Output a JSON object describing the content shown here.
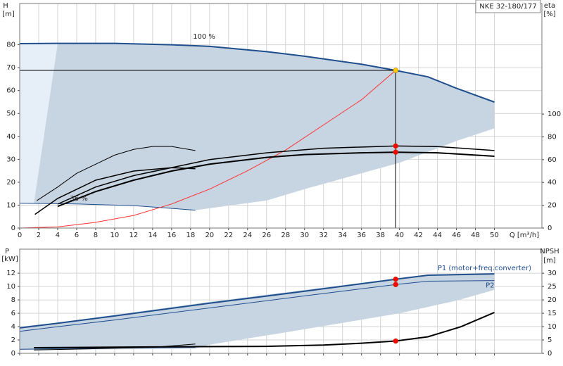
{
  "header": {
    "model": "NKE 32-180/177"
  },
  "chart_data": [
    {
      "type": "line",
      "y_label": "H",
      "y_unit": "[m]",
      "y2_label": "eta",
      "y2_unit": "[%]",
      "x_label": "Q [m³/h]",
      "xlim": [
        0,
        55
      ],
      "xticks": [
        0,
        2,
        4,
        6,
        8,
        10,
        12,
        14,
        16,
        18,
        20,
        22,
        24,
        26,
        28,
        30,
        32,
        34,
        36,
        38,
        40,
        42,
        44,
        46,
        48,
        50
      ],
      "ylim": [
        0,
        98
      ],
      "yticks": [
        0,
        10,
        20,
        30,
        40,
        50,
        60,
        70,
        80
      ],
      "y2lim": [
        0,
        197
      ],
      "y2ticks": [
        0,
        20,
        40,
        60,
        80,
        100
      ],
      "grid": true,
      "series": [
        {
          "color": "#e6eef7",
          "fill": true,
          "x": [
            0,
            4,
            1.5,
            0
          ],
          "values": [
            80.5,
            80.6,
            10.8,
            10.8
          ]
        },
        {
          "color": "#c7d5e3",
          "fill": true,
          "x": [
            4,
            10,
            16,
            20,
            26,
            30,
            36,
            39.6,
            43,
            46,
            50,
            50,
            46,
            40,
            30,
            26,
            18.5,
            12,
            6,
            1.5
          ],
          "values": [
            80.6,
            80.6,
            80,
            79.3,
            77,
            75,
            71.5,
            68.8,
            66,
            61,
            55,
            43.5,
            38,
            28.5,
            17,
            12,
            7.8,
            9.8,
            10.5,
            10.8
          ]
        },
        {
          "color": "#1f4e8c",
          "line_width": 2,
          "x": [
            0,
            4,
            10,
            16,
            20,
            26,
            30,
            36,
            39.6,
            43,
            46,
            50
          ],
          "values": [
            80.5,
            80.6,
            80.6,
            80,
            79.3,
            77,
            75,
            71.5,
            68.8,
            66,
            61,
            55
          ]
        },
        {
          "color": "#1f4e8c",
          "line_width": 1,
          "x": [
            0,
            6,
            12,
            18.5
          ],
          "values": [
            10.8,
            10.5,
            9.8,
            7.8
          ]
        },
        {
          "color": "#ff3030",
          "line_width": 1,
          "x": [
            0,
            4,
            8,
            12,
            16,
            20,
            24,
            28,
            32,
            36,
            39.6
          ],
          "values": [
            0,
            0.5,
            2.5,
            5.5,
            10.5,
            17,
            25,
            34,
            45,
            56,
            68.8
          ]
        },
        {
          "color": "#000000",
          "line_width": 1,
          "x": [
            0,
            39.6
          ],
          "values": [
            68.8,
            68.8
          ]
        },
        {
          "color": "#000000",
          "line_width": 1,
          "x": [
            39.6,
            39.6
          ],
          "values": [
            0,
            68.8
          ]
        },
        {
          "color": "#000000",
          "line_width": 2,
          "axis": "y2",
          "x": [
            4,
            8,
            12,
            16,
            20,
            26,
            30,
            36,
            39.6,
            44,
            50
          ],
          "values": [
            19,
            32,
            42,
            50,
            56,
            62,
            64.5,
            66,
            66.6,
            66,
            63
          ]
        },
        {
          "color": "#000000",
          "line_width": 1.5,
          "axis": "y2",
          "x": [
            4,
            8,
            12,
            20,
            26,
            32,
            39.6,
            44,
            50
          ],
          "values": [
            21,
            36,
            46,
            60,
            66,
            70,
            72,
            71.5,
            68
          ]
        },
        {
          "color": "#000000",
          "line_width": 1,
          "axis": "y2",
          "x": [
            1.8,
            4,
            6,
            8,
            10,
            12,
            14,
            16,
            18.5
          ],
          "values": [
            24,
            36,
            48,
            56,
            64,
            69,
            71.6,
            71.6,
            68
          ]
        },
        {
          "color": "#000000",
          "line_width": 1.5,
          "axis": "y2",
          "x": [
            1.6,
            4,
            8,
            12,
            16,
            18.5
          ],
          "values": [
            12,
            26,
            42,
            50,
            53,
            52
          ]
        }
      ],
      "points": [
        {
          "x": 39.6,
          "y": 68.8,
          "color": "#ffcc00"
        },
        {
          "x": 39.6,
          "y": 72,
          "axis": "y2",
          "color": "#ff0000"
        },
        {
          "x": 39.6,
          "y": 66.6,
          "axis": "y2",
          "color": "#ff0000"
        }
      ],
      "annotations": [
        "100 %",
        "36 %"
      ]
    },
    {
      "type": "line",
      "y_label": "P",
      "y_unit": "[kW]",
      "y2_label": "NPSH",
      "y2_unit": "[m]",
      "xlim": [
        0,
        55
      ],
      "xticks": [
        0,
        2,
        4,
        6,
        8,
        10,
        12,
        14,
        16,
        18,
        20,
        22,
        24,
        26,
        28,
        30,
        32,
        34,
        36,
        38,
        40,
        42,
        44,
        46,
        48,
        50
      ],
      "xtick_labels": false,
      "ylim": [
        0,
        15.6
      ],
      "yticks": [
        0,
        2,
        4,
        6,
        8,
        10,
        12
      ],
      "y2lim": [
        0,
        39
      ],
      "y2ticks": [
        0,
        5,
        10,
        15,
        20,
        25,
        30
      ],
      "grid": true,
      "series": [
        {
          "color": "#c7d5e3",
          "fill": true,
          "x": [
            0,
            4,
            20,
            39.6,
            43,
            50,
            50,
            46,
            40,
            30,
            20,
            18.5,
            0
          ],
          "values": [
            4,
            4.6,
            7.7,
            11.2,
            11.8,
            12,
            9.5,
            7.9,
            6,
            3.6,
            1.3,
            0.7,
            0.5
          ]
        },
        {
          "name": "P1 (motor+freq.converter)",
          "color": "#1f4e8c",
          "line_width": 2,
          "x": [
            0,
            4,
            10,
            20,
            30,
            39.6,
            43,
            50
          ],
          "values": [
            3.8,
            4.5,
            5.6,
            7.5,
            9.3,
            11.1,
            11.7,
            11.9
          ]
        },
        {
          "name": "P2",
          "color": "#1f4e8c",
          "line_width": 1,
          "x": [
            0,
            4,
            10,
            20,
            30,
            39.6,
            43,
            50
          ],
          "values": [
            3.3,
            4,
            5,
            6.8,
            8.6,
            10.3,
            10.8,
            10.9
          ]
        },
        {
          "color": "#1f4e8c",
          "line_width": 1,
          "x": [
            0,
            4,
            10,
            18.5
          ],
          "values": [
            0.6,
            0.7,
            0.8,
            0.9
          ]
        },
        {
          "color": "#000000",
          "line_width": 1,
          "x": [
            1.5,
            8,
            14,
            18.5
          ],
          "values": [
            0.5,
            0.7,
            0.9,
            1.4
          ]
        },
        {
          "color": "#000000",
          "line_width": 2,
          "axis": "y2",
          "x": [
            1.5,
            10,
            18.5,
            26,
            32,
            36,
            39.6,
            43,
            46.5,
            50
          ],
          "values": [
            2.1,
            2.3,
            2.5,
            2.6,
            3.1,
            3.8,
            4.6,
            6.2,
            10,
            15.3
          ]
        }
      ],
      "points": [
        {
          "x": 39.6,
          "y": 11.1,
          "color": "#ff0000"
        },
        {
          "x": 39.6,
          "y": 10.3,
          "color": "#ff0000"
        },
        {
          "x": 39.6,
          "y": 4.6,
          "axis": "y2",
          "color": "#ff0000"
        }
      ]
    }
  ]
}
